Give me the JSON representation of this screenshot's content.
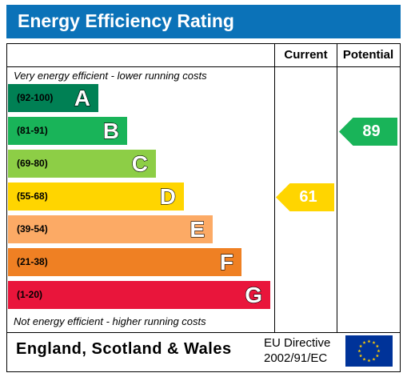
{
  "title": "Energy Efficiency Rating",
  "columns": {
    "current": "Current",
    "potential": "Potential"
  },
  "top_note": "Very energy efficient - lower running costs",
  "bottom_note": "Not energy efficient - higher running costs",
  "footer": {
    "region": "England, Scotland & Wales",
    "directive_line1": "EU Directive",
    "directive_line2": "2002/91/EC"
  },
  "colors": {
    "title_bar": "#0b72b8",
    "flag_blue": "#003399",
    "flag_star": "#ffcc00"
  },
  "chart_data": {
    "type": "bar",
    "categories": [
      "A",
      "B",
      "C",
      "D",
      "E",
      "F",
      "G"
    ],
    "ranges": [
      "(92-100)",
      "(81-91)",
      "(69-80)",
      "(55-68)",
      "(39-54)",
      "(21-38)",
      "(1-20)"
    ],
    "band_colors": [
      "#008054",
      "#19b459",
      "#8dce46",
      "#ffd500",
      "#fcaa65",
      "#ef8023",
      "#e9153b"
    ],
    "current": {
      "value": 61,
      "band": "D",
      "color": "#ffd500"
    },
    "potential": {
      "value": 89,
      "band": "B",
      "color": "#19b459"
    }
  }
}
